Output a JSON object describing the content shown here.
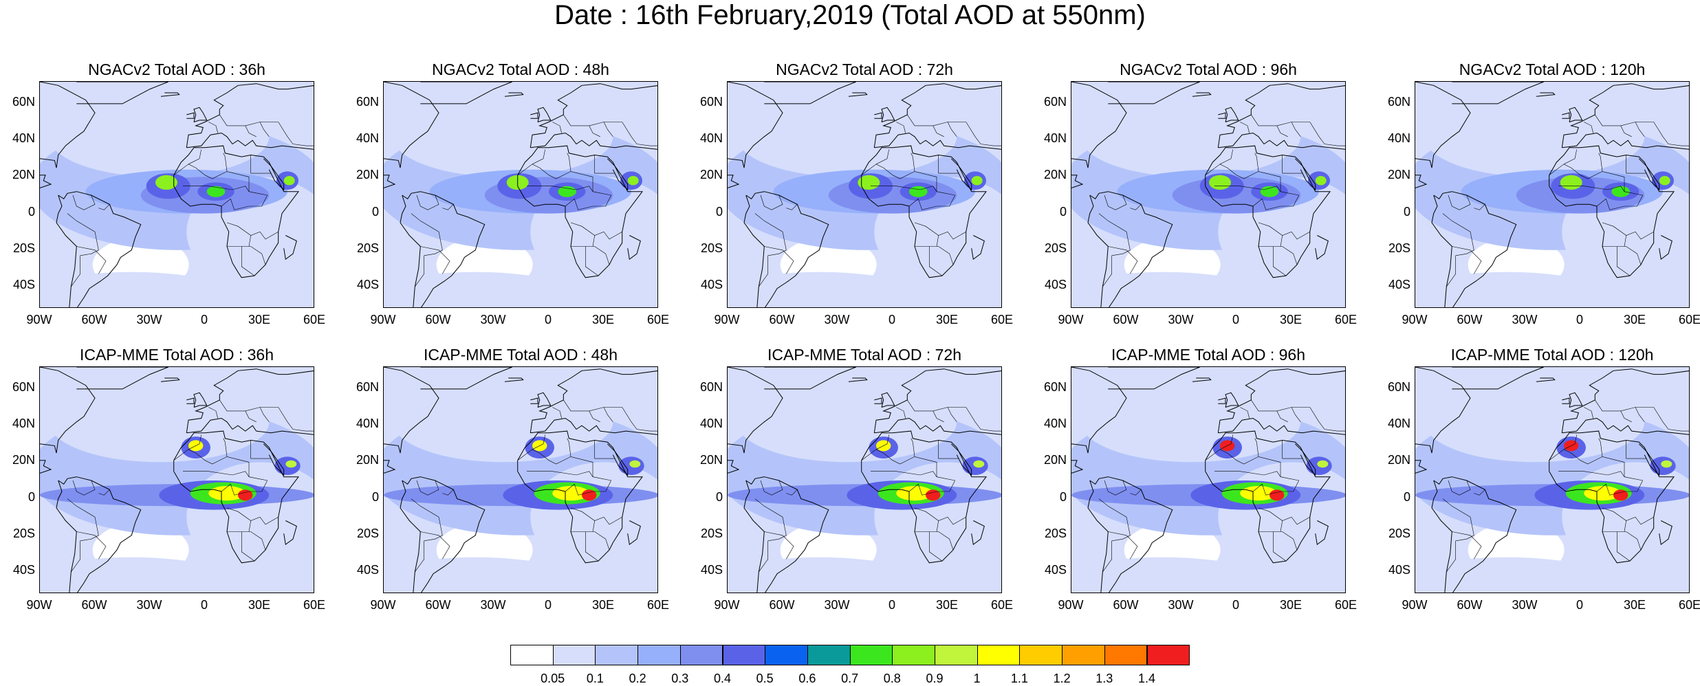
{
  "figure": {
    "title": "Date : 16th February,2019 (Total AOD at 550nm)"
  },
  "lat_ticks": [
    "60N",
    "40N",
    "20N",
    "0",
    "20S",
    "40S"
  ],
  "lon_ticks": [
    "90W",
    "60W",
    "30W",
    "0",
    "30E",
    "60E"
  ],
  "panels": [
    {
      "title": "NGACv2 Total AOD : 36h",
      "model": "NGACv2",
      "lead_hour": 36
    },
    {
      "title": "NGACv2 Total AOD : 48h",
      "model": "NGACv2",
      "lead_hour": 48
    },
    {
      "title": "NGACv2 Total AOD : 72h",
      "model": "NGACv2",
      "lead_hour": 72
    },
    {
      "title": "NGACv2 Total AOD : 96h",
      "model": "NGACv2",
      "lead_hour": 96
    },
    {
      "title": "NGACv2 Total AOD : 120h",
      "model": "NGACv2",
      "lead_hour": 120
    },
    {
      "title": "ICAP-MME Total AOD : 36h",
      "model": "ICAP-MME",
      "lead_hour": 36
    },
    {
      "title": "ICAP-MME Total AOD : 48h",
      "model": "ICAP-MME",
      "lead_hour": 48
    },
    {
      "title": "ICAP-MME Total AOD : 72h",
      "model": "ICAP-MME",
      "lead_hour": 72
    },
    {
      "title": "ICAP-MME Total AOD : 96h",
      "model": "ICAP-MME",
      "lead_hour": 96
    },
    {
      "title": "ICAP-MME Total AOD : 120h",
      "model": "ICAP-MME",
      "lead_hour": 120
    }
  ],
  "colorbar": {
    "labels": [
      "0.05",
      "0.1",
      "0.2",
      "0.3",
      "0.4",
      "0.5",
      "0.6",
      "0.7",
      "0.8",
      "0.9",
      "1",
      "1.1",
      "1.2",
      "1.3",
      "1.4"
    ],
    "colors": [
      "#ffffff",
      "#d6defc",
      "#b4c4fa",
      "#97b0fb",
      "#7f8ff0",
      "#5a63e8",
      "#0a63f0",
      "#0a9a9a",
      "#3ce61e",
      "#8cf01e",
      "#c0f53c",
      "#ffff00",
      "#ffcc00",
      "#ffa000",
      "#ff7800",
      "#f01e1e"
    ]
  }
}
